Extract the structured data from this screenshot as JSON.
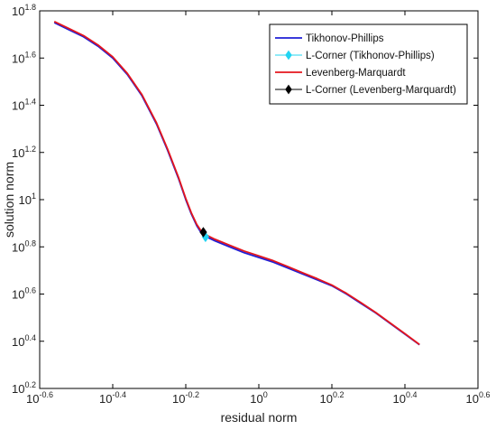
{
  "chart_data": {
    "type": "line",
    "xlabel": "residual norm",
    "ylabel": "solution norm",
    "x_scale": "log",
    "y_scale": "log",
    "xlim": [
      -0.6,
      0.6
    ],
    "ylim": [
      0.2,
      1.8
    ],
    "grid": false,
    "legend_position": "top-right",
    "x_ticks": [
      {
        "base": "10",
        "exp": "-0.6",
        "value": -0.6
      },
      {
        "base": "10",
        "exp": "-0.4",
        "value": -0.4
      },
      {
        "base": "10",
        "exp": "-0.2",
        "value": -0.2
      },
      {
        "base": "10",
        "exp": "0",
        "value": 0
      },
      {
        "base": "10",
        "exp": "0.2",
        "value": 0.2
      },
      {
        "base": "10",
        "exp": "0.4",
        "value": 0.4
      },
      {
        "base": "10",
        "exp": "0.6",
        "value": 0.6
      }
    ],
    "y_ticks": [
      {
        "base": "10",
        "exp": "0.2",
        "value": 0.2
      },
      {
        "base": "10",
        "exp": "0.4",
        "value": 0.4
      },
      {
        "base": "10",
        "exp": "0.6",
        "value": 0.6
      },
      {
        "base": "10",
        "exp": "0.8",
        "value": 0.8
      },
      {
        "base": "10",
        "exp": "1",
        "value": 1.0
      },
      {
        "base": "10",
        "exp": "1.2",
        "value": 1.2
      },
      {
        "base": "10",
        "exp": "1.4",
        "value": 1.4
      },
      {
        "base": "10",
        "exp": "1.6",
        "value": 1.6
      },
      {
        "base": "10",
        "exp": "1.8",
        "value": 1.8
      }
    ],
    "series": [
      {
        "name": "Tikhonov-Phillips",
        "color": "#1f1fd6",
        "kind": "line",
        "x": [
          -0.56,
          -0.52,
          -0.48,
          -0.44,
          -0.4,
          -0.36,
          -0.32,
          -0.28,
          -0.25,
          -0.22,
          -0.2,
          -0.185,
          -0.17,
          -0.16,
          -0.15,
          -0.14,
          -0.12,
          -0.08,
          -0.04,
          0.0,
          0.04,
          0.08,
          0.12,
          0.16,
          0.2,
          0.24,
          0.28,
          0.32,
          0.36,
          0.4,
          0.44
        ],
        "y": [
          1.75,
          1.72,
          1.69,
          1.65,
          1.6,
          1.53,
          1.44,
          1.32,
          1.21,
          1.09,
          1.0,
          0.94,
          0.89,
          0.865,
          0.85,
          0.84,
          0.825,
          0.8,
          0.775,
          0.755,
          0.735,
          0.71,
          0.685,
          0.66,
          0.635,
          0.6,
          0.56,
          0.52,
          0.475,
          0.43,
          0.385
        ]
      },
      {
        "name": "L-Corner (Tikhonov-Phillips)",
        "color": "#22d4f2",
        "kind": "marker",
        "marker": "diamond",
        "x": [
          -0.146
        ],
        "y": [
          0.842
        ]
      },
      {
        "name": "Levenberg-Marquardt",
        "color": "#e4161d",
        "kind": "line",
        "x": [
          -0.56,
          -0.52,
          -0.48,
          -0.44,
          -0.4,
          -0.36,
          -0.32,
          -0.28,
          -0.25,
          -0.22,
          -0.2,
          -0.185,
          -0.17,
          -0.16,
          -0.15,
          -0.14,
          -0.12,
          -0.08,
          -0.04,
          0.0,
          0.04,
          0.08,
          0.12,
          0.16,
          0.2,
          0.24,
          0.28,
          0.32,
          0.36,
          0.4,
          0.44
        ],
        "y": [
          1.755,
          1.725,
          1.695,
          1.655,
          1.605,
          1.535,
          1.445,
          1.325,
          1.215,
          1.095,
          1.005,
          0.945,
          0.895,
          0.872,
          0.858,
          0.847,
          0.832,
          0.807,
          0.782,
          0.762,
          0.741,
          0.716,
          0.69,
          0.665,
          0.638,
          0.603,
          0.563,
          0.522,
          0.477,
          0.432,
          0.386
        ]
      },
      {
        "name": "L-Corner (Levenberg-Marquardt)",
        "color": "#000000",
        "kind": "marker",
        "marker": "diamond",
        "x": [
          -0.152
        ],
        "y": [
          0.862
        ]
      }
    ]
  }
}
